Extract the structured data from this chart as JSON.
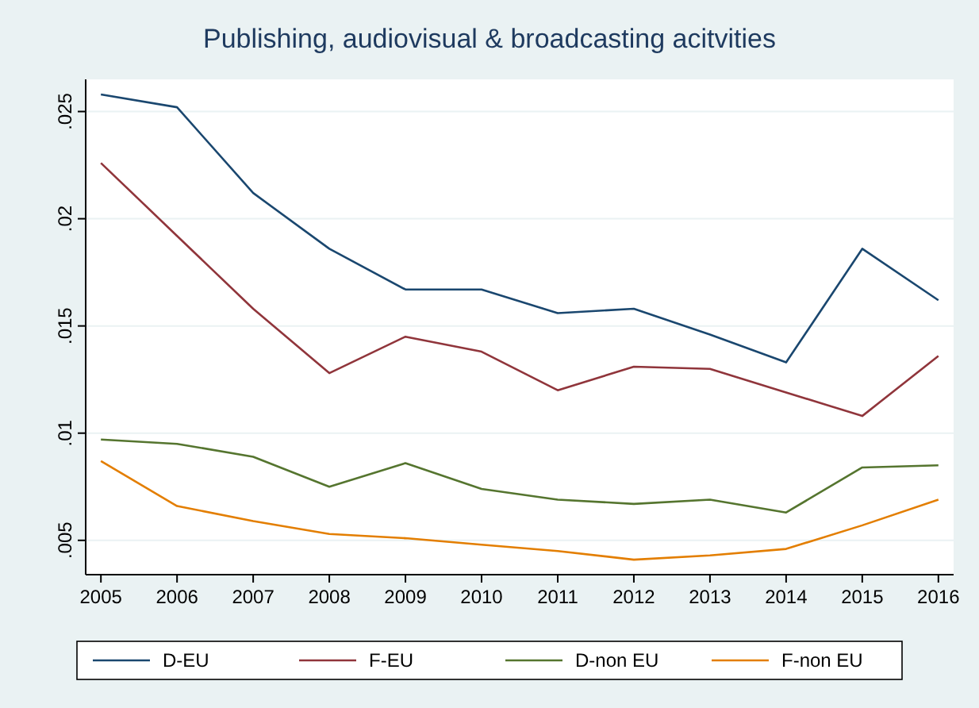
{
  "chart_data": {
    "type": "line",
    "title": "Publishing, audiovisual & broadcasting acitvities",
    "x": [
      2005,
      2006,
      2007,
      2008,
      2009,
      2010,
      2011,
      2012,
      2013,
      2014,
      2015,
      2016
    ],
    "series": [
      {
        "name": "D-EU",
        "color": "#1a476f",
        "values": [
          0.0258,
          0.0252,
          0.0212,
          0.0186,
          0.0167,
          0.0167,
          0.0156,
          0.0158,
          0.0146,
          0.0133,
          0.0186,
          0.0162
        ]
      },
      {
        "name": "F-EU",
        "color": "#90353b",
        "values": [
          0.0226,
          0.0192,
          0.0158,
          0.0128,
          0.0145,
          0.0138,
          0.012,
          0.0131,
          0.013,
          0.0119,
          0.0108,
          0.0136
        ]
      },
      {
        "name": "D-non EU",
        "color": "#55752f",
        "values": [
          0.0097,
          0.0095,
          0.0089,
          0.0075,
          0.0086,
          0.0074,
          0.0069,
          0.0067,
          0.0069,
          0.0063,
          0.0084,
          0.0085
        ]
      },
      {
        "name": "F-non EU",
        "color": "#e37e00",
        "values": [
          0.0087,
          0.0066,
          0.0059,
          0.0053,
          0.0051,
          0.0048,
          0.0045,
          0.0041,
          0.0043,
          0.0046,
          0.0057,
          0.0069
        ]
      }
    ],
    "xlim": [
      2004.8,
      2016.2
    ],
    "xticks": [
      2005,
      2006,
      2007,
      2008,
      2009,
      2010,
      2011,
      2012,
      2013,
      2014,
      2015,
      2016
    ],
    "ylim": [
      0.0034,
      0.0265
    ],
    "yticks": [
      {
        "value": 0.005,
        "label": ".005"
      },
      {
        "value": 0.01,
        "label": ".01"
      },
      {
        "value": 0.015,
        "label": ".015"
      },
      {
        "value": 0.02,
        "label": ".02"
      },
      {
        "value": 0.025,
        "label": ".025"
      }
    ],
    "grid": "y",
    "legend": "bottom",
    "marker": "none",
    "line_style": "solid"
  }
}
